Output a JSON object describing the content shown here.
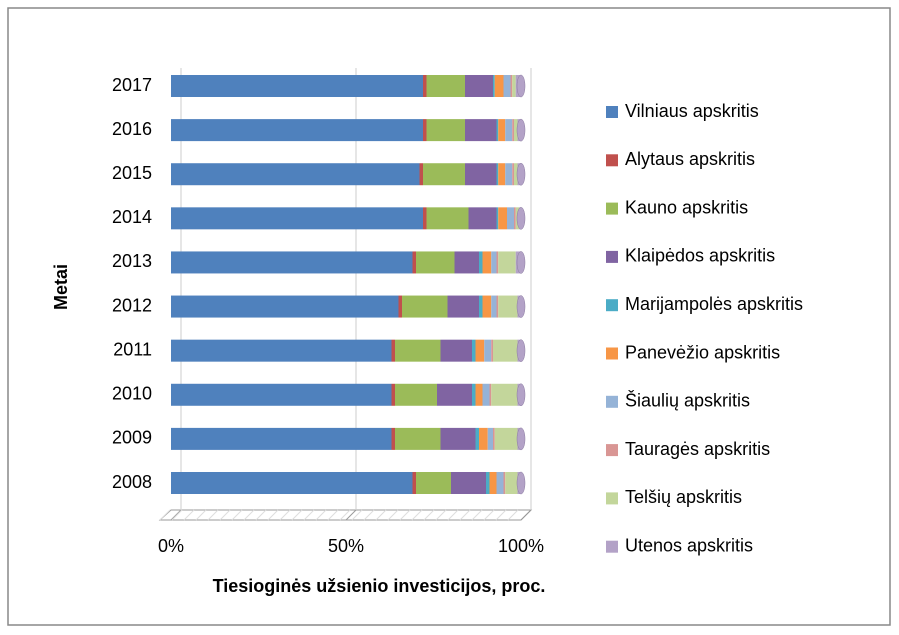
{
  "chart_data": {
    "type": "bar",
    "orientation": "horizontal",
    "stacked": "percent",
    "y_axis_label": "Metai",
    "x_axis_label": "Tiesioginės užsienio investicijos, proc.",
    "categories": [
      "2008",
      "2009",
      "2010",
      "2011",
      "2012",
      "2013",
      "2014",
      "2015",
      "2016",
      "2017"
    ],
    "xlim": [
      0,
      100
    ],
    "xticks": [
      {
        "value": 0,
        "label": "0%"
      },
      {
        "value": 50,
        "label": "50%"
      },
      {
        "value": 100,
        "label": "100%"
      }
    ],
    "grid": true,
    "legend": "right",
    "series": [
      {
        "name": "Vilniaus apskritis",
        "color": "#4f81bd",
        "values": [
          69,
          63,
          63,
          63,
          65,
          69,
          72,
          71,
          72,
          72
        ]
      },
      {
        "name": "Alytaus apskritis",
        "color": "#c0504d",
        "values": [
          1,
          1,
          1,
          1,
          1,
          1,
          1,
          1,
          1,
          1
        ]
      },
      {
        "name": "Kauno apskritis",
        "color": "#9bbb59",
        "values": [
          10,
          13,
          12,
          13,
          13,
          11,
          12,
          12,
          11,
          11
        ]
      },
      {
        "name": "Klaipėdos apskritis",
        "color": "#8064a2",
        "values": [
          10,
          10,
          10,
          9,
          9,
          7,
          8,
          9,
          9,
          8
        ]
      },
      {
        "name": "Marijampolės apskritis",
        "color": "#4bacc6",
        "values": [
          1,
          1,
          1,
          1,
          1,
          1,
          0.5,
          0.5,
          0.5,
          0.5
        ]
      },
      {
        "name": "Panevėžio apskritis",
        "color": "#f79646",
        "values": [
          2,
          2.5,
          2,
          2.5,
          2.5,
          2.5,
          2.5,
          2,
          2,
          2.5
        ]
      },
      {
        "name": "Šiaulių apskritis",
        "color": "#95b3d7",
        "values": [
          2,
          1.5,
          2,
          2,
          1.5,
          1.5,
          2,
          2,
          2,
          2
        ]
      },
      {
        "name": "Tauragės apskritis",
        "color": "#d99694",
        "values": [
          0.5,
          0.5,
          0.5,
          0.5,
          0.5,
          0.5,
          0.5,
          0.5,
          0.5,
          0.5
        ]
      },
      {
        "name": "Telšių apskritis",
        "color": "#c3d69b",
        "values": [
          3.5,
          6.5,
          7.5,
          7,
          5.5,
          5,
          1,
          1,
          1,
          1
        ]
      },
      {
        "name": "Utenos apskritis",
        "color": "#b3a2c7",
        "values": [
          1,
          1,
          1,
          1,
          1,
          1.5,
          0.5,
          1,
          1,
          1.5
        ]
      }
    ]
  }
}
